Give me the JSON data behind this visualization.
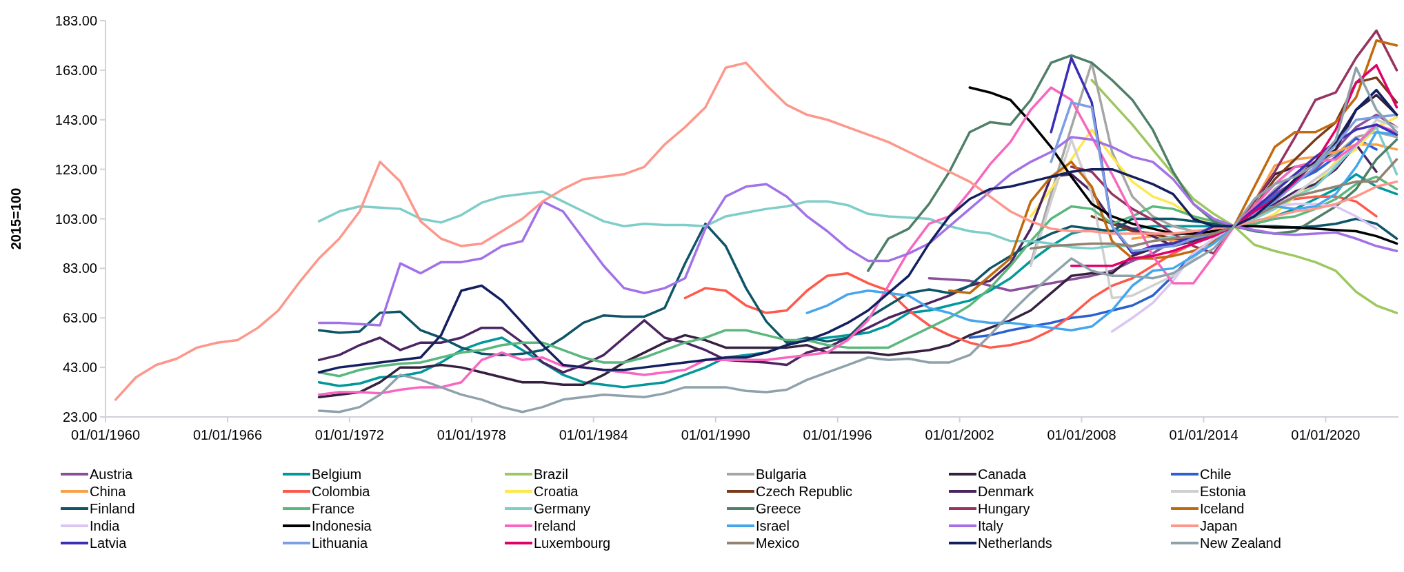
{
  "chart_data": {
    "type": "line",
    "ylabel": "2015=100",
    "x": [
      "1960-07-01",
      "1961-07-01",
      "1962-07-01",
      "1963-07-01",
      "1964-07-01",
      "1965-07-01",
      "1966-07-01",
      "1967-07-01",
      "1968-07-01",
      "1969-07-01",
      "1970-07-01",
      "1971-07-01",
      "1972-07-01",
      "1973-07-01",
      "1974-07-01",
      "1975-07-01",
      "1976-07-01",
      "1977-07-01",
      "1978-07-01",
      "1979-07-01",
      "1980-07-01",
      "1981-07-01",
      "1982-07-01",
      "1983-07-01",
      "1984-07-01",
      "1985-07-01",
      "1986-07-01",
      "1987-07-01",
      "1988-07-01",
      "1989-07-01",
      "1990-07-01",
      "1991-07-01",
      "1992-07-01",
      "1993-07-01",
      "1994-07-01",
      "1995-07-01",
      "1996-07-01",
      "1997-07-01",
      "1998-07-01",
      "1999-07-01",
      "2000-07-01",
      "2001-07-01",
      "2002-07-01",
      "2003-07-01",
      "2004-07-01",
      "2005-07-01",
      "2006-07-01",
      "2007-07-01",
      "2008-07-01",
      "2009-07-01",
      "2010-07-01",
      "2011-07-01",
      "2012-07-01",
      "2013-07-01",
      "2014-07-01",
      "2015-07-01",
      "2016-07-01",
      "2017-07-01",
      "2018-07-01",
      "2019-07-01",
      "2020-07-01",
      "2021-07-01",
      "2022-07-01",
      "2023-07-01"
    ],
    "xlim": [
      "1960-01-01",
      "2023-08-01"
    ],
    "xticks": [
      {
        "value": "1960-01-01",
        "label": "01/01/1960"
      },
      {
        "value": "1966-01-01",
        "label": "01/01/1966"
      },
      {
        "value": "1972-01-01",
        "label": "01/01/1972"
      },
      {
        "value": "1978-01-01",
        "label": "01/01/1978"
      },
      {
        "value": "1984-01-01",
        "label": "01/01/1984"
      },
      {
        "value": "1990-01-01",
        "label": "01/01/1990"
      },
      {
        "value": "1996-01-01",
        "label": "01/01/1996"
      },
      {
        "value": "2002-01-01",
        "label": "01/01/2002"
      },
      {
        "value": "2008-01-01",
        "label": "01/01/2008"
      },
      {
        "value": "2014-01-01",
        "label": "01/01/2014"
      },
      {
        "value": "2020-01-01",
        "label": "01/01/2020"
      }
    ],
    "ylim": [
      23,
      183
    ],
    "yticks": [
      {
        "value": 23,
        "label": "23.00"
      },
      {
        "value": 43,
        "label": "43.00"
      },
      {
        "value": 63,
        "label": "63.00"
      },
      {
        "value": 83,
        "label": "83.00"
      },
      {
        "value": 103,
        "label": "103.00"
      },
      {
        "value": 123,
        "label": "123.00"
      },
      {
        "value": 143,
        "label": "143.00"
      },
      {
        "value": 163,
        "label": "163.00"
      },
      {
        "value": 183,
        "label": "183.00"
      }
    ],
    "legend": "bottom",
    "grid": false,
    "marker": "none",
    "line_style": "solid",
    "series": [
      {
        "name": "Austria",
        "color": "#8b4e9b",
        "values": [
          null,
          null,
          null,
          null,
          null,
          null,
          null,
          null,
          null,
          null,
          null,
          null,
          null,
          null,
          null,
          null,
          null,
          null,
          null,
          null,
          null,
          null,
          null,
          null,
          null,
          null,
          null,
          null,
          null,
          null,
          null,
          null,
          null,
          null,
          null,
          null,
          null,
          null,
          null,
          null,
          79,
          78.5,
          78,
          76,
          74,
          75.5,
          77,
          78.5,
          80,
          82,
          86,
          89,
          94,
          97,
          98,
          100,
          108,
          113,
          118,
          123,
          131,
          140,
          145,
          140
        ]
      },
      {
        "name": "Belgium",
        "color": "#00989a",
        "values": [
          null,
          null,
          null,
          null,
          null,
          null,
          null,
          null,
          null,
          null,
          37,
          35.5,
          36.5,
          39,
          39.5,
          41,
          45,
          50,
          53,
          55,
          50,
          45,
          40,
          37,
          36,
          35,
          36,
          37,
          40,
          43,
          47,
          48,
          49,
          52,
          54,
          55,
          56,
          57,
          60,
          65,
          66,
          68,
          70,
          74,
          79,
          86,
          92,
          97,
          99,
          98,
          99,
          100,
          100,
          100,
          100,
          100,
          102,
          104,
          107,
          111,
          115,
          121,
          116,
          113
        ]
      },
      {
        "name": "Brazil",
        "color": "#9dc75f",
        "values": [
          null,
          null,
          null,
          null,
          null,
          null,
          null,
          null,
          null,
          null,
          null,
          null,
          null,
          null,
          null,
          null,
          null,
          null,
          null,
          null,
          null,
          null,
          null,
          null,
          null,
          null,
          null,
          null,
          null,
          null,
          null,
          null,
          null,
          null,
          null,
          null,
          null,
          null,
          null,
          null,
          null,
          null,
          null,
          null,
          null,
          null,
          null,
          null,
          159,
          150,
          141,
          131,
          121,
          111,
          105,
          100,
          92.5,
          90,
          88,
          85.5,
          82,
          73.5,
          68,
          65
        ]
      },
      {
        "name": "Bulgaria",
        "color": "#a5a5a5",
        "values": [
          null,
          null,
          null,
          null,
          null,
          null,
          null,
          null,
          null,
          null,
          null,
          null,
          null,
          null,
          null,
          null,
          null,
          null,
          null,
          null,
          null,
          null,
          null,
          null,
          null,
          null,
          null,
          null,
          null,
          null,
          null,
          null,
          null,
          null,
          null,
          null,
          null,
          null,
          null,
          null,
          null,
          null,
          null,
          null,
          null,
          85,
          113,
          140,
          166,
          130,
          112,
          104,
          100,
          98,
          97,
          100,
          106,
          115,
          121,
          126,
          129,
          136,
          138,
          136
        ]
      },
      {
        "name": "Canada",
        "color": "#35203f",
        "values": [
          null,
          null,
          null,
          null,
          null,
          null,
          null,
          null,
          null,
          null,
          31,
          32,
          33,
          37,
          43,
          43,
          44,
          43,
          41,
          39,
          37,
          37,
          36,
          36,
          40,
          45,
          49,
          53,
          56,
          54,
          51,
          51,
          51,
          51,
          52,
          49,
          49,
          49,
          48,
          49,
          50,
          52,
          56,
          59,
          62,
          66,
          73,
          80,
          81,
          81,
          88,
          91,
          93,
          95,
          97,
          100,
          110,
          121,
          124,
          125,
          131,
          147,
          153,
          145
        ]
      },
      {
        "name": "Chile",
        "color": "#2a60d0",
        "values": [
          null,
          null,
          null,
          null,
          null,
          null,
          null,
          null,
          null,
          null,
          null,
          null,
          null,
          null,
          null,
          null,
          null,
          null,
          null,
          null,
          null,
          null,
          null,
          null,
          null,
          null,
          null,
          null,
          null,
          null,
          null,
          null,
          null,
          null,
          null,
          null,
          null,
          null,
          null,
          null,
          null,
          null,
          55,
          56,
          58,
          59.5,
          61,
          63,
          64,
          66,
          68,
          72,
          80,
          89,
          94,
          100,
          107,
          112,
          118,
          122,
          128,
          135.5,
          131,
          null
        ]
      },
      {
        "name": "China",
        "color": "#f8a14b",
        "values": [
          null,
          null,
          null,
          null,
          null,
          null,
          null,
          null,
          null,
          null,
          null,
          null,
          null,
          null,
          null,
          null,
          null,
          null,
          null,
          null,
          null,
          null,
          null,
          null,
          null,
          null,
          null,
          null,
          null,
          null,
          null,
          null,
          null,
          null,
          null,
          null,
          null,
          null,
          null,
          null,
          null,
          null,
          null,
          null,
          null,
          null,
          null,
          null,
          null,
          null,
          95,
          96,
          94,
          97,
          99,
          100,
          110,
          124.5,
          127,
          128,
          130,
          133,
          133,
          131
        ]
      },
      {
        "name": "Colombia",
        "color": "#fe5a4b",
        "values": [
          null,
          null,
          null,
          null,
          null,
          null,
          null,
          null,
          null,
          null,
          null,
          null,
          null,
          null,
          null,
          null,
          null,
          null,
          null,
          null,
          null,
          null,
          null,
          null,
          null,
          null,
          null,
          null,
          71,
          75,
          74,
          68,
          65,
          66,
          74,
          80,
          81,
          77,
          74,
          66,
          60,
          56,
          53,
          51,
          52,
          54,
          58,
          64,
          71,
          76,
          79,
          84,
          89,
          93,
          96,
          100,
          106,
          110,
          111,
          112,
          112,
          110,
          104,
          null
        ]
      },
      {
        "name": "Croatia",
        "color": "#fde84f",
        "values": [
          null,
          null,
          null,
          null,
          null,
          null,
          null,
          null,
          null,
          null,
          null,
          null,
          null,
          null,
          null,
          null,
          null,
          null,
          null,
          null,
          null,
          null,
          null,
          null,
          null,
          null,
          null,
          null,
          null,
          null,
          null,
          null,
          null,
          null,
          null,
          null,
          null,
          null,
          null,
          null,
          null,
          null,
          null,
          null,
          null,
          104,
          115,
          127,
          139,
          128,
          118,
          112,
          109,
          104,
          101,
          100,
          101,
          105,
          112,
          117,
          126,
          131,
          140,
          144
        ]
      },
      {
        "name": "Czech Republic",
        "color": "#7a3a1c",
        "values": [
          null,
          null,
          null,
          null,
          null,
          null,
          null,
          null,
          null,
          null,
          null,
          null,
          null,
          null,
          null,
          null,
          null,
          null,
          null,
          null,
          null,
          null,
          null,
          null,
          null,
          null,
          null,
          null,
          null,
          null,
          null,
          null,
          null,
          null,
          null,
          null,
          null,
          null,
          null,
          null,
          null,
          null,
          null,
          null,
          null,
          null,
          null,
          null,
          104,
          101,
          98,
          97,
          95,
          95,
          97,
          100,
          108,
          119,
          127,
          135,
          142,
          158,
          160,
          150
        ]
      },
      {
        "name": "Denmark",
        "color": "#4b2461",
        "values": [
          null,
          null,
          null,
          null,
          null,
          null,
          null,
          null,
          null,
          null,
          46,
          48,
          52,
          55,
          50,
          53,
          53,
          55,
          59,
          59,
          53,
          45,
          41,
          44,
          48,
          55,
          62,
          55,
          53,
          50,
          46,
          45.5,
          45,
          44,
          49,
          51,
          55,
          59,
          63,
          66,
          69,
          72,
          76,
          78,
          85,
          99,
          120,
          121,
          114,
          102,
          99,
          96,
          92,
          94,
          97,
          100,
          105,
          109,
          114,
          117,
          123,
          133,
          122,
          null
        ]
      },
      {
        "name": "Estonia",
        "color": "#cfcfcf",
        "values": [
          null,
          null,
          null,
          null,
          null,
          null,
          null,
          null,
          null,
          null,
          null,
          null,
          null,
          null,
          null,
          null,
          null,
          null,
          null,
          null,
          null,
          null,
          null,
          null,
          null,
          null,
          null,
          null,
          null,
          null,
          null,
          null,
          null,
          null,
          null,
          null,
          null,
          null,
          null,
          null,
          null,
          null,
          null,
          null,
          null,
          84,
          110,
          135,
          113,
          71,
          72,
          76,
          80,
          87,
          95,
          100,
          104,
          108,
          113,
          119,
          125,
          132,
          143,
          140
        ]
      },
      {
        "name": "Finland",
        "color": "#0e5567",
        "values": [
          null,
          null,
          null,
          null,
          null,
          null,
          null,
          null,
          null,
          null,
          58,
          57,
          57.5,
          65,
          65.5,
          58,
          55,
          51,
          48.5,
          48,
          48.5,
          50,
          55,
          61,
          64,
          63.5,
          63.5,
          67,
          85,
          101,
          92,
          75,
          61.5,
          53,
          55,
          53.5,
          55,
          63,
          68,
          73,
          74.5,
          73,
          76,
          83,
          88,
          93,
          97,
          100,
          99,
          98,
          103,
          103,
          103,
          102,
          101,
          100,
          100,
          100,
          99.5,
          100,
          101,
          103,
          101,
          95
        ]
      },
      {
        "name": "France",
        "color": "#5ab77d",
        "values": [
          null,
          null,
          null,
          null,
          null,
          null,
          null,
          null,
          null,
          null,
          41,
          39.5,
          42,
          43.5,
          44.5,
          45,
          47,
          49,
          50,
          52,
          53,
          53,
          50,
          47,
          45,
          45,
          47,
          50,
          53,
          55,
          58,
          58,
          56,
          54,
          54,
          52,
          51,
          51,
          51,
          55,
          59,
          63,
          68,
          75,
          84,
          94,
          103,
          108,
          107,
          101,
          104,
          108,
          107,
          104,
          102,
          100,
          101,
          103,
          104,
          107,
          111,
          117,
          120,
          115
        ]
      },
      {
        "name": "Germany",
        "color": "#7fcdc9",
        "values": [
          null,
          null,
          null,
          null,
          null,
          null,
          null,
          null,
          null,
          null,
          102,
          106,
          108,
          107.5,
          107,
          103,
          101.5,
          104.5,
          109.5,
          112,
          113,
          114,
          110,
          106,
          102,
          100,
          101,
          100.5,
          100.5,
          100,
          104,
          105.5,
          107,
          108,
          110,
          110,
          108.5,
          105,
          104,
          103.5,
          103,
          100,
          98,
          97,
          94,
          94,
          93,
          91.5,
          91,
          92,
          92,
          94,
          96,
          98,
          99,
          100,
          103,
          107,
          112,
          116,
          124,
          133,
          140,
          121
        ]
      },
      {
        "name": "Greece",
        "color": "#4e7f67",
        "values": [
          null,
          null,
          null,
          null,
          null,
          null,
          null,
          null,
          null,
          null,
          null,
          null,
          null,
          null,
          null,
          null,
          null,
          null,
          null,
          null,
          null,
          null,
          null,
          null,
          null,
          null,
          null,
          null,
          null,
          null,
          null,
          null,
          null,
          null,
          null,
          null,
          null,
          82,
          95,
          99,
          109,
          122,
          138,
          142,
          141,
          151,
          166,
          169,
          166,
          159,
          151,
          139,
          122,
          109,
          102,
          100,
          98,
          97,
          98,
          103,
          108,
          115,
          127,
          135
        ]
      },
      {
        "name": "Hungary",
        "color": "#953462",
        "values": [
          null,
          null,
          null,
          null,
          null,
          null,
          null,
          null,
          null,
          null,
          null,
          null,
          null,
          null,
          null,
          null,
          null,
          null,
          null,
          null,
          null,
          null,
          null,
          null,
          null,
          null,
          null,
          null,
          null,
          null,
          null,
          null,
          null,
          null,
          null,
          null,
          null,
          null,
          null,
          null,
          null,
          null,
          null,
          null,
          null,
          null,
          null,
          124,
          122,
          113,
          107,
          102.5,
          97,
          92,
          89,
          100,
          110,
          122,
          136,
          151,
          154,
          168,
          179,
          163
        ]
      },
      {
        "name": "Iceland",
        "color": "#c1690e",
        "values": [
          null,
          null,
          null,
          null,
          null,
          null,
          null,
          null,
          null,
          null,
          null,
          null,
          null,
          null,
          null,
          null,
          null,
          null,
          null,
          null,
          null,
          null,
          null,
          null,
          null,
          null,
          null,
          null,
          null,
          null,
          null,
          null,
          null,
          null,
          null,
          null,
          null,
          null,
          null,
          null,
          null,
          74,
          73,
          80,
          87,
          110,
          120,
          126,
          116,
          94,
          87,
          87,
          88,
          90,
          94,
          100,
          116,
          132,
          138,
          138,
          142,
          152,
          175,
          173
        ]
      },
      {
        "name": "India",
        "color": "#dac6f2",
        "values": [
          null,
          null,
          null,
          null,
          null,
          null,
          null,
          null,
          null,
          null,
          null,
          null,
          null,
          null,
          null,
          null,
          null,
          null,
          null,
          null,
          null,
          null,
          null,
          null,
          null,
          null,
          null,
          null,
          null,
          null,
          null,
          null,
          null,
          null,
          null,
          null,
          null,
          null,
          null,
          null,
          null,
          null,
          null,
          null,
          null,
          null,
          null,
          null,
          null,
          57.5,
          63,
          69,
          78,
          89,
          95,
          100,
          105,
          108,
          109,
          109,
          108,
          104,
          99,
          null
        ]
      },
      {
        "name": "Indonesia",
        "color": "#000000",
        "values": [
          null,
          null,
          null,
          null,
          null,
          null,
          null,
          null,
          null,
          null,
          null,
          null,
          null,
          null,
          null,
          null,
          null,
          null,
          null,
          null,
          null,
          null,
          null,
          null,
          null,
          null,
          null,
          null,
          null,
          null,
          null,
          null,
          null,
          null,
          null,
          null,
          null,
          null,
          null,
          null,
          null,
          null,
          156,
          154,
          151,
          142,
          132,
          120,
          109,
          104,
          101,
          99,
          97,
          97,
          98,
          100,
          100,
          99.5,
          99.5,
          99,
          98.5,
          98,
          96,
          93
        ]
      },
      {
        "name": "Ireland",
        "color": "#f866bf",
        "values": [
          null,
          null,
          null,
          null,
          null,
          null,
          null,
          null,
          null,
          null,
          32,
          33,
          33,
          32.5,
          34,
          35,
          35,
          37,
          46,
          49,
          46,
          47,
          43.5,
          43,
          42,
          41,
          40,
          41,
          42,
          46,
          46,
          46,
          46,
          47,
          48,
          49,
          54,
          62,
          76,
          90,
          101,
          104,
          114,
          125,
          134,
          147,
          156,
          151,
          136,
          121,
          105,
          88,
          77,
          77,
          88,
          100,
          108,
          117,
          124,
          126,
          127,
          133,
          141,
          138
        ]
      },
      {
        "name": "Israel",
        "color": "#45a6ed",
        "values": [
          null,
          null,
          null,
          null,
          null,
          null,
          null,
          null,
          null,
          null,
          null,
          null,
          null,
          null,
          null,
          null,
          null,
          null,
          null,
          null,
          null,
          null,
          null,
          null,
          null,
          null,
          null,
          null,
          null,
          null,
          null,
          null,
          null,
          null,
          65,
          68,
          72.5,
          74,
          73,
          72,
          67,
          65,
          62,
          61,
          61,
          60,
          59,
          58,
          59.5,
          66,
          76,
          82,
          83,
          88,
          93,
          100,
          106,
          108,
          107,
          108,
          113,
          124,
          138,
          137
        ]
      },
      {
        "name": "Italy",
        "color": "#a271e8",
        "values": [
          null,
          null,
          null,
          null,
          null,
          null,
          null,
          null,
          null,
          null,
          61,
          61,
          60.5,
          60,
          85,
          81,
          85.5,
          85.5,
          87,
          92,
          94,
          110,
          106,
          95,
          84,
          75,
          73,
          75,
          79,
          99,
          112,
          116,
          117,
          112,
          104,
          98,
          91,
          86,
          86,
          89,
          93,
          100,
          107,
          114,
          121,
          126,
          130,
          136,
          135,
          132,
          128,
          126,
          119,
          109,
          103,
          100,
          98.5,
          97,
          96.5,
          97,
          97.5,
          95,
          92,
          90
        ]
      },
      {
        "name": "Japan",
        "color": "#fe978b",
        "values": [
          30,
          39,
          44,
          46.5,
          51,
          53,
          54,
          59,
          66,
          77,
          87,
          95,
          106,
          126,
          118,
          102,
          95,
          92,
          93,
          98,
          103,
          110,
          115,
          119,
          120,
          121,
          124,
          133,
          140,
          148,
          164,
          166,
          157,
          149,
          145,
          143,
          140,
          137,
          134,
          130,
          126,
          122,
          118,
          112,
          106,
          102,
          99,
          98,
          98,
          97,
          97,
          97,
          97,
          98,
          99,
          100,
          102,
          104,
          106,
          107,
          109,
          112,
          116,
          118
        ]
      },
      {
        "name": "Latvia",
        "color": "#3a2fb5",
        "values": [
          null,
          null,
          null,
          null,
          null,
          null,
          null,
          null,
          null,
          null,
          null,
          null,
          null,
          null,
          null,
          null,
          null,
          null,
          null,
          null,
          null,
          null,
          null,
          null,
          null,
          null,
          null,
          null,
          null,
          null,
          null,
          null,
          null,
          null,
          null,
          null,
          null,
          null,
          null,
          null,
          null,
          null,
          null,
          null,
          null,
          null,
          138,
          168,
          150,
          100,
          89,
          92,
          93,
          96,
          100,
          100,
          107,
          114,
          121,
          128,
          134,
          139,
          141,
          137
        ]
      },
      {
        "name": "Lithuania",
        "color": "#7c9ee4",
        "values": [
          null,
          null,
          null,
          null,
          null,
          null,
          null,
          null,
          null,
          null,
          null,
          null,
          null,
          null,
          null,
          null,
          null,
          null,
          null,
          null,
          null,
          null,
          null,
          null,
          null,
          null,
          null,
          null,
          null,
          null,
          null,
          null,
          null,
          null,
          null,
          null,
          null,
          null,
          null,
          null,
          null,
          null,
          null,
          null,
          null,
          null,
          126,
          150,
          148,
          100,
          90,
          91,
          92,
          95,
          97,
          100,
          105,
          110,
          117,
          124,
          133,
          143,
          144,
          145
        ]
      },
      {
        "name": "Luxembourg",
        "color": "#e1006a",
        "values": [
          null,
          null,
          null,
          null,
          null,
          null,
          null,
          null,
          null,
          null,
          null,
          null,
          null,
          null,
          null,
          null,
          null,
          null,
          null,
          null,
          null,
          null,
          null,
          null,
          null,
          null,
          null,
          null,
          null,
          null,
          null,
          null,
          null,
          null,
          null,
          null,
          null,
          null,
          null,
          null,
          null,
          null,
          null,
          null,
          null,
          null,
          null,
          84,
          84,
          84,
          87,
          88,
          90,
          93,
          96,
          100,
          106,
          111,
          118,
          126,
          139,
          158,
          165,
          148
        ]
      },
      {
        "name": "Mexico",
        "color": "#938271",
        "values": [
          null,
          null,
          null,
          null,
          null,
          null,
          null,
          null,
          null,
          null,
          null,
          null,
          null,
          null,
          null,
          null,
          null,
          null,
          null,
          null,
          null,
          null,
          null,
          null,
          null,
          null,
          null,
          null,
          null,
          null,
          null,
          null,
          null,
          null,
          null,
          null,
          null,
          null,
          null,
          null,
          null,
          null,
          null,
          null,
          null,
          91,
          92,
          92.5,
          93,
          93,
          92,
          94,
          95,
          96,
          97,
          100,
          104,
          108,
          112,
          114,
          116,
          118,
          118,
          127
        ]
      },
      {
        "name": "Netherlands",
        "color": "#131f5f",
        "values": [
          null,
          null,
          null,
          null,
          null,
          null,
          null,
          null,
          null,
          null,
          41,
          43,
          44,
          45,
          46,
          47,
          56,
          74,
          76,
          70,
          61,
          52,
          44,
          43,
          42,
          42,
          43,
          44,
          45,
          46,
          47,
          47,
          49,
          52,
          54,
          57,
          61,
          66,
          73,
          80,
          93,
          104,
          111,
          115,
          116,
          118,
          120,
          122,
          123,
          123,
          120,
          117,
          113,
          103,
          100,
          100,
          104,
          111,
          119,
          126,
          134,
          147,
          155,
          145
        ]
      },
      {
        "name": "New Zealand",
        "color": "#8fa2ab",
        "values": [
          null,
          null,
          null,
          null,
          null,
          null,
          null,
          null,
          null,
          null,
          25.5,
          25,
          27,
          32,
          40,
          38,
          35,
          32,
          30,
          27,
          25,
          27,
          30,
          31,
          32,
          31.5,
          31,
          32.5,
          35,
          35,
          35,
          33.5,
          33,
          34,
          38,
          41,
          44,
          47,
          46,
          46.5,
          45,
          45,
          48,
          56,
          65,
          73,
          80,
          87,
          82,
          80,
          80,
          79,
          81,
          86,
          91,
          100,
          111,
          117,
          120,
          125,
          135,
          164,
          147,
          138
        ]
      }
    ]
  }
}
